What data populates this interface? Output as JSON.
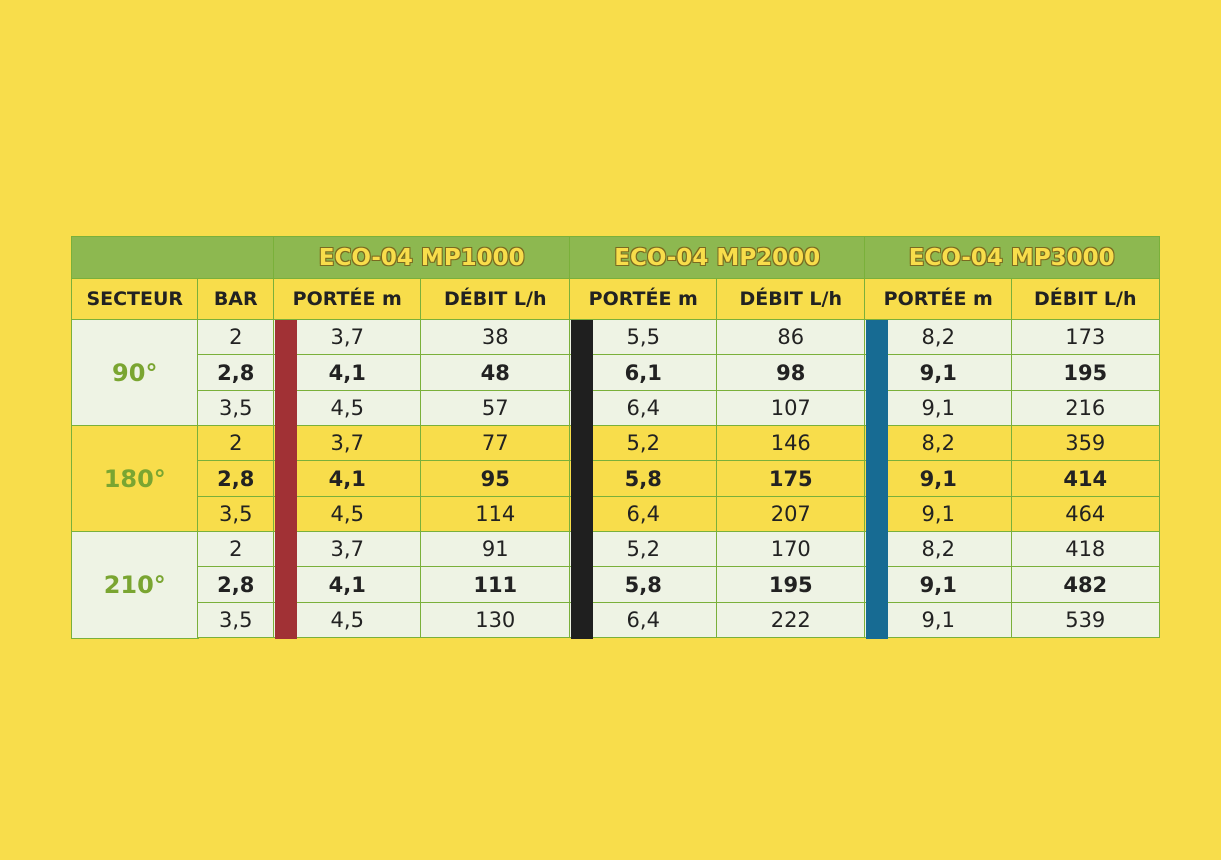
{
  "header": {
    "groups": [
      "ECO-04 MP1000",
      "ECO-04 MP2000",
      "ECO-04 MP3000"
    ],
    "columns": [
      "SECTEUR",
      "BAR",
      "PORTÉE m",
      "DÉBIT L/h",
      "PORTÉE m",
      "DÉBIT L/h",
      "PORTÉE m",
      "DÉBIT L/h"
    ]
  },
  "sectors": [
    {
      "label": "90°",
      "rows": [
        [
          "2",
          "3,7",
          "38",
          "5,5",
          "86",
          "8,2",
          "173"
        ],
        [
          "2,8",
          "4,1",
          "48",
          "6,1",
          "98",
          "9,1",
          "195"
        ],
        [
          "3,5",
          "4,5",
          "57",
          "6,4",
          "107",
          "9,1",
          "216"
        ]
      ]
    },
    {
      "label": "180°",
      "rows": [
        [
          "2",
          "3,7",
          "77",
          "5,2",
          "146",
          "8,2",
          "359"
        ],
        [
          "2,8",
          "4,1",
          "95",
          "5,8",
          "175",
          "9,1",
          "414"
        ],
        [
          "3,5",
          "4,5",
          "114",
          "6,4",
          "207",
          "9,1",
          "464"
        ]
      ]
    },
    {
      "label": "210°",
      "rows": [
        [
          "2",
          "3,7",
          "91",
          "5,2",
          "170",
          "8,2",
          "418"
        ],
        [
          "2,8",
          "4,1",
          "111",
          "5,8",
          "195",
          "9,1",
          "482"
        ],
        [
          "3,5",
          "4,5",
          "130",
          "6,4",
          "222",
          "9,1",
          "539"
        ]
      ]
    }
  ]
}
